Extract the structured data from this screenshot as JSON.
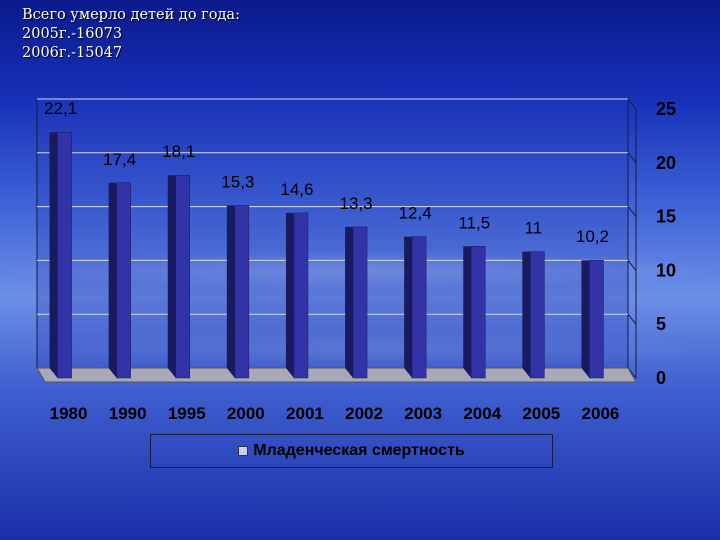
{
  "header": {
    "line1": "Всего умерло детей до года:",
    "line2": "2005г.-16073",
    "line3": "2006г.-15047"
  },
  "colors": {
    "bar_front": "#3333a8",
    "bar_side": "#1a1a60",
    "bar_top": "#5555c8",
    "axis_floor": "#a8a8b8",
    "gridline": "#d8d8e8"
  },
  "chart_data": {
    "type": "bar",
    "categories": [
      "1980",
      "1990",
      "1995",
      "2000",
      "2001",
      "2002",
      "2003",
      "2004",
      "2005",
      "2006"
    ],
    "series": [
      {
        "name": "Младенческая смертность",
        "values": [
          22.1,
          17.4,
          18.1,
          15.3,
          14.6,
          13.3,
          12.4,
          11.5,
          11,
          10.2
        ],
        "value_labels": [
          "22,1",
          "17,4",
          "18,1",
          "15,3",
          "14,6",
          "13,3",
          "12,4",
          "11,5",
          "11",
          "10,2"
        ]
      }
    ],
    "ylim": [
      0,
      25
    ],
    "yticks": [
      "0",
      "5",
      "10",
      "15",
      "20",
      "25"
    ],
    "y_axis_side": "right",
    "grid": true,
    "legend_position": "bottom",
    "style": "3d"
  }
}
